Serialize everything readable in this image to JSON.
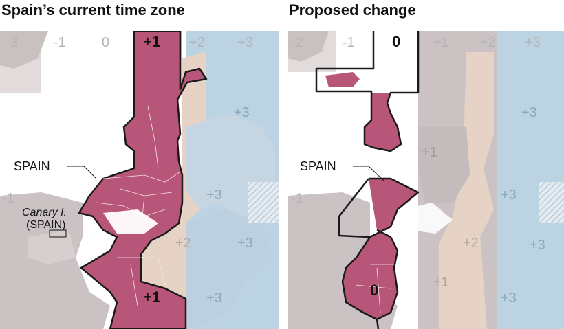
{
  "left_panel": {
    "title": "Spain’s current time zone",
    "offset_labels_top": [
      "-3",
      "-1",
      "0",
      "+1",
      "+2",
      "+3"
    ],
    "highlighted_zone_label": "+1",
    "highlighted_zone_label_bottom": "+1",
    "zone_labels": [
      "+3",
      "+3",
      "+2",
      "+3",
      "+3",
      "-1"
    ],
    "country_label": "SPAIN",
    "canary_label_line1": "Canary I.",
    "canary_label_line2": "(SPAIN)"
  },
  "right_panel": {
    "title": "Proposed change",
    "offset_labels_top": [
      "-2",
      "-1",
      "0",
      "+1",
      "+2",
      "+3"
    ],
    "highlighted_zone_label": "0",
    "highlighted_zone_label_bottom": "0",
    "zone_labels": [
      "+3",
      "+1",
      "+3",
      "+2",
      "+3",
      "+1",
      "+3",
      "-1"
    ],
    "country_label": "SPAIN"
  },
  "colors": {
    "highlight": "#b8567a",
    "highlight_border": "#1a1a1a",
    "zone_grey": "#cbc3c3",
    "zone_tan": "#e6d3c6",
    "zone_blue": "#bcd3e3",
    "ocean": "#ffffff",
    "label_grey": "#b5b5b5"
  }
}
